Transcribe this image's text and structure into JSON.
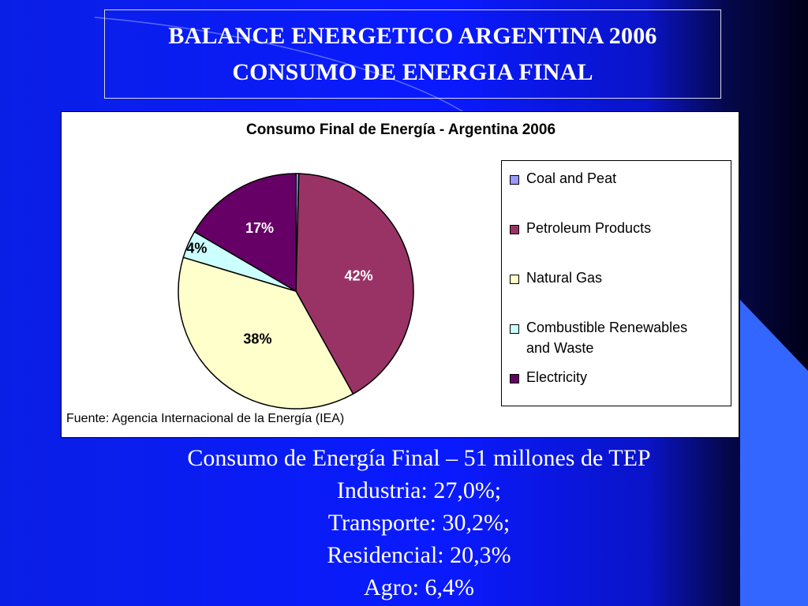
{
  "slide": {
    "title_line1": "BALANCE ENERGETICO  ARGENTINA 2006",
    "title_line2": "CONSUMO DE ENERGIA FINAL",
    "body_lines": [
      "Consumo de Energía Final – 51 millones de TEP",
      "Industria: 27,0%;",
      "Transporte: 30,2%;",
      "Residencial: 20,3%",
      "Agro: 6,4%"
    ]
  },
  "chart_data": {
    "type": "pie",
    "title": "Consumo Final de Energía - Argentina 2006",
    "source": "Fuente: Agencia Internacional de la Energía (IEA)",
    "legend_position": "right",
    "slices": [
      {
        "name": "Coal and Peat",
        "value": 0.4,
        "label": "",
        "color": "#9999ff"
      },
      {
        "name": "Petroleum Products",
        "value": 41.6,
        "label": "42%",
        "color": "#993366"
      },
      {
        "name": "Natural Gas",
        "value": 37.8,
        "label": "38%",
        "color": "#ffffcc"
      },
      {
        "name": "Combustible Renewables and Waste",
        "value": 3.8,
        "label": "4%",
        "color": "#ccffff"
      },
      {
        "name": "Electricity",
        "value": 16.6,
        "label": "17%",
        "color": "#660066"
      }
    ],
    "legend_labels": [
      "Coal and Peat",
      "Petroleum Products",
      "Natural Gas",
      "Combustible Renewables",
      "and Waste",
      "Electricity"
    ]
  }
}
